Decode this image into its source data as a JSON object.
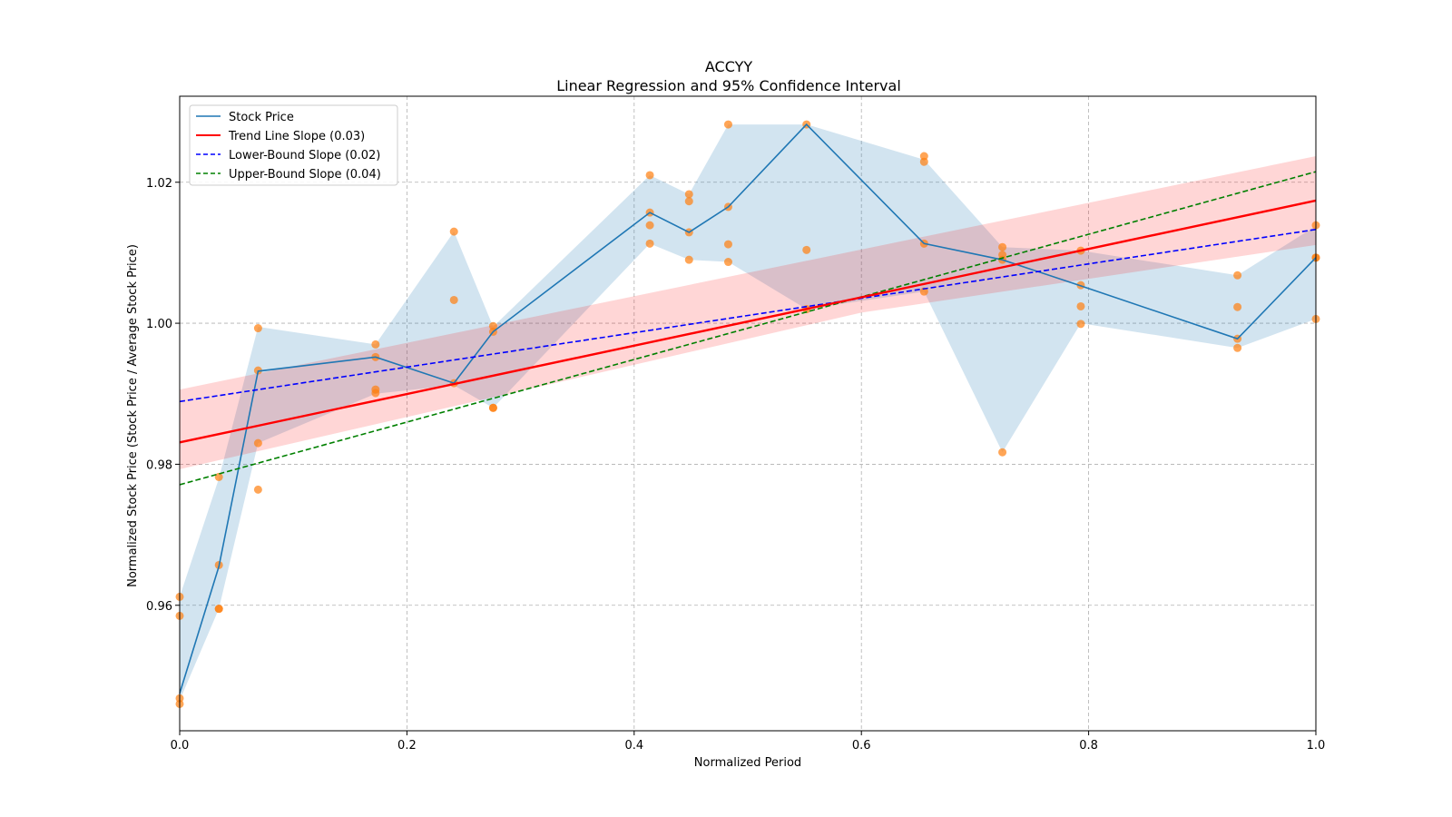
{
  "chart_data": {
    "type": "line",
    "title": "ACCYY",
    "subtitle": "Linear Regression and 95% Confidence Interval",
    "xlabel": "Normalized Period",
    "ylabel": "Normalized Stock Price (Stock Price / Average Stock Price)",
    "xlim": [
      0.0,
      1.0
    ],
    "ylim": [
      0.9422,
      1.0322
    ],
    "grid": true,
    "legend_position": "upper-left",
    "x_ticks": [
      "0.0",
      "0.2",
      "0.4",
      "0.6",
      "0.8",
      "1.0"
    ],
    "y_ticks": [
      "0.96",
      "0.98",
      "1.00",
      "1.02"
    ],
    "x_tick_values": [
      0.0,
      0.2,
      0.4,
      0.6,
      0.8,
      1.0
    ],
    "y_tick_values": [
      0.96,
      0.98,
      1.0,
      1.02
    ],
    "legend": [
      {
        "label": "Stock Price",
        "color": "#1f77b4",
        "style": "solid"
      },
      {
        "label": "Trend Line Slope (0.03)",
        "color": "#ff0000",
        "style": "solid"
      },
      {
        "label": "Lower-Bound Slope (0.02)",
        "color": "#0000ff",
        "style": "dashed"
      },
      {
        "label": "Upper-Bound Slope (0.04)",
        "color": "#008000",
        "style": "dashed"
      }
    ],
    "stock_price": {
      "x": [
        0.0,
        0.0345,
        0.069,
        0.1724,
        0.2414,
        0.2759,
        0.4138,
        0.4483,
        0.4828,
        0.5517,
        0.6552,
        0.7241,
        0.7931,
        0.931,
        1.0
      ],
      "y": [
        0.9475,
        0.9655,
        0.9932,
        0.9952,
        0.9915,
        0.9988,
        1.0157,
        1.0129,
        1.0165,
        1.0282,
        1.0113,
        1.009,
        1.0053,
        0.9978,
        1.0093
      ],
      "band_low": [
        0.9465,
        0.9595,
        0.983,
        0.99,
        0.9912,
        0.988,
        1.0113,
        1.009,
        1.0087,
        1.002,
        1.0045,
        0.9817,
        1.0,
        0.9965,
        1.0006
      ],
      "band_high": [
        0.9612,
        0.978,
        0.9995,
        0.997,
        1.013,
        0.9995,
        1.021,
        1.0183,
        1.0282,
        1.0282,
        1.0232,
        1.0108,
        1.0103,
        1.0068,
        1.0138
      ]
    },
    "scatter": {
      "x": [
        0.0,
        0.0,
        0.0,
        0.0,
        0.0345,
        0.0345,
        0.0345,
        0.0345,
        0.069,
        0.069,
        0.069,
        0.069,
        0.1724,
        0.1724,
        0.1724,
        0.1724,
        0.2414,
        0.2414,
        0.2414,
        0.2759,
        0.2759,
        0.2759,
        0.2759,
        0.4138,
        0.4138,
        0.4138,
        0.4138,
        0.4483,
        0.4483,
        0.4483,
        0.4483,
        0.4828,
        0.4828,
        0.4828,
        0.4828,
        0.5517,
        0.5517,
        0.5517,
        0.6552,
        0.6552,
        0.6552,
        0.6552,
        0.7241,
        0.7241,
        0.7241,
        0.7241,
        0.7931,
        0.7931,
        0.7931,
        0.7931,
        0.931,
        0.931,
        0.931,
        0.931,
        1.0,
        1.0,
        1.0,
        1.0
      ],
      "y": [
        0.9612,
        0.9585,
        0.9468,
        0.946,
        0.9782,
        0.9657,
        0.9595,
        0.9595,
        0.9993,
        0.9933,
        0.983,
        0.9764,
        0.997,
        0.9952,
        0.9906,
        0.9901,
        1.013,
        1.0033,
        0.9915,
        0.9996,
        0.9988,
        0.988,
        0.988,
        1.021,
        1.0157,
        1.0139,
        1.0113,
        1.0183,
        1.0173,
        1.0129,
        1.009,
        1.0282,
        1.0165,
        1.0112,
        1.0087,
        1.0282,
        1.0104,
        1.002,
        1.0237,
        1.0229,
        1.0113,
        1.0045,
        1.0108,
        1.0097,
        1.009,
        0.9817,
        1.0103,
        1.0054,
        1.0024,
        0.9999,
        1.0068,
        1.0023,
        0.9978,
        0.9965,
        1.0139,
        1.0093,
        1.0093,
        1.0006
      ]
    },
    "trend_line": {
      "x": [
        0.0,
        1.0
      ],
      "y": [
        0.9831,
        1.0174
      ],
      "ci_low": [
        0.9793,
        1.0111
      ],
      "ci_high": [
        0.9906,
        1.0237
      ],
      "ci_mid": [
        0.6,
        1.0035
      ]
    },
    "lower_bound_line": {
      "x": [
        0.0,
        1.0
      ],
      "y": [
        0.9889,
        1.0133
      ]
    },
    "upper_bound_line": {
      "x": [
        0.0,
        1.0
      ],
      "y": [
        0.9771,
        1.0215
      ]
    },
    "colors": {
      "stock": "#1f77b4",
      "band": "#1f77b4",
      "scatter": "#ff7f0e",
      "trend": "#ff0000",
      "trend_ci": "#ff0000",
      "lower": "#0000ff",
      "upper": "#008000"
    }
  }
}
